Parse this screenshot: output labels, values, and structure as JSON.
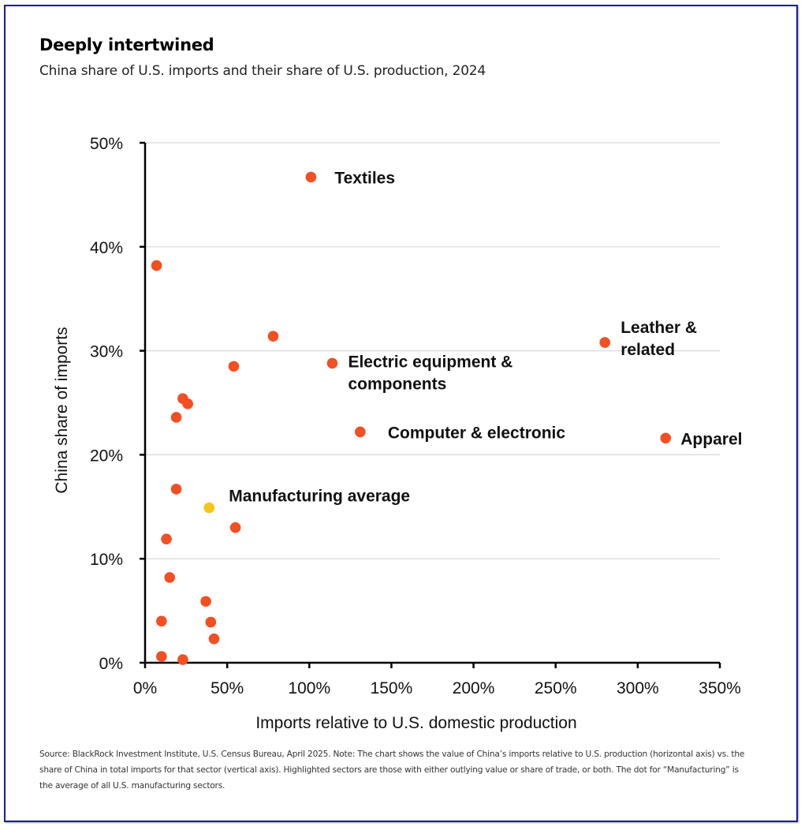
{
  "header": {
    "title": "Deeply intertwined",
    "subtitle": "China share of U.S. imports and their share of U.S. production, 2024"
  },
  "footnote": "Source: BlackRock Investment Institute, U.S. Census Bureau, April 2025. Note: The chart shows the value of China’s imports relative to U.S. production (horizontal axis) vs. the share of China in total imports for that sector (vertical axis). Highlighted sectors are those with either outlying value or share of trade, or both. The dot for “Manufacturing” is the average of all U.S. manufacturing sectors.",
  "colors": {
    "sector_dot": "#f24f23",
    "average_dot": "#f5c518",
    "gridline": "#d9d9d9",
    "axis": "#000000",
    "frame": "#1a1aa6"
  },
  "chart_data": {
    "type": "scatter",
    "title": "Deeply intertwined",
    "subtitle": "China share of U.S. imports and their share of U.S. production, 2024",
    "xlabel": "Imports relative to U.S. domestic production",
    "ylabel": "China share of imports",
    "xlim": [
      0,
      350
    ],
    "ylim": [
      0,
      50
    ],
    "x_ticks": [
      0,
      50,
      100,
      150,
      200,
      250,
      300,
      350
    ],
    "x_tick_labels": [
      "0%",
      "50%",
      "100%",
      "150%",
      "200%",
      "250%",
      "300%",
      "350%"
    ],
    "y_ticks": [
      0,
      10,
      20,
      30,
      40,
      50
    ],
    "y_tick_labels": [
      "0%",
      "10%",
      "20%",
      "30%",
      "40%",
      "50%"
    ],
    "grid": "horizontal",
    "units": "percent",
    "points": [
      {
        "x": 101,
        "y": 46.7,
        "label": "Textiles",
        "type": "sector"
      },
      {
        "x": 7,
        "y": 38.2,
        "label": "",
        "type": "sector"
      },
      {
        "x": 78,
        "y": 31.4,
        "label": "",
        "type": "sector"
      },
      {
        "x": 280,
        "y": 30.8,
        "label": "Leather & related",
        "type": "sector"
      },
      {
        "x": 114,
        "y": 28.8,
        "label": "Electric equipment & components",
        "type": "sector"
      },
      {
        "x": 54,
        "y": 28.5,
        "label": "",
        "type": "sector"
      },
      {
        "x": 23,
        "y": 25.4,
        "label": "",
        "type": "sector"
      },
      {
        "x": 26,
        "y": 24.9,
        "label": "",
        "type": "sector"
      },
      {
        "x": 19,
        "y": 23.6,
        "label": "",
        "type": "sector"
      },
      {
        "x": 131,
        "y": 22.2,
        "label": "Computer & electronic",
        "type": "sector"
      },
      {
        "x": 317,
        "y": 21.6,
        "label": "Apparel",
        "type": "sector"
      },
      {
        "x": 19,
        "y": 16.7,
        "label": "",
        "type": "sector"
      },
      {
        "x": 39,
        "y": 14.9,
        "label": "Manufacturing average",
        "type": "average"
      },
      {
        "x": 55,
        "y": 13.0,
        "label": "",
        "type": "sector"
      },
      {
        "x": 13,
        "y": 11.9,
        "label": "",
        "type": "sector"
      },
      {
        "x": 15,
        "y": 8.2,
        "label": "",
        "type": "sector"
      },
      {
        "x": 37,
        "y": 5.9,
        "label": "",
        "type": "sector"
      },
      {
        "x": 10,
        "y": 4.0,
        "label": "",
        "type": "sector"
      },
      {
        "x": 40,
        "y": 3.9,
        "label": "",
        "type": "sector"
      },
      {
        "x": 42,
        "y": 2.3,
        "label": "",
        "type": "sector"
      },
      {
        "x": 10,
        "y": 0.6,
        "label": "",
        "type": "sector"
      },
      {
        "x": 23,
        "y": 0.3,
        "label": "",
        "type": "sector"
      }
    ],
    "annotations": [
      {
        "text_lines": [
          "Textiles"
        ],
        "anchor_x": 101,
        "anchor_y": 46.7
      },
      {
        "text_lines": [
          "Leather &",
          "related"
        ],
        "anchor_x": 280,
        "anchor_y": 30.8
      },
      {
        "text_lines": [
          "Electric equipment &",
          "components"
        ],
        "anchor_x": 114,
        "anchor_y": 28.8
      },
      {
        "text_lines": [
          "Computer & electronic"
        ],
        "anchor_x": 131,
        "anchor_y": 22.2
      },
      {
        "text_lines": [
          "Apparel"
        ],
        "anchor_x": 317,
        "anchor_y": 21.6
      },
      {
        "text_lines": [
          "Manufacturing average"
        ],
        "anchor_x": 39,
        "anchor_y": 14.9
      }
    ]
  }
}
